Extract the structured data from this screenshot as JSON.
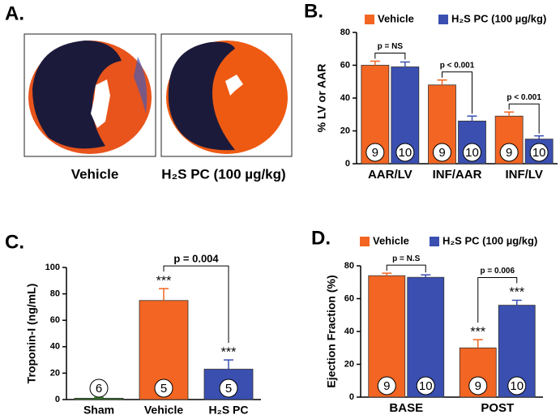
{
  "panel_a": {
    "panel_label": "A.",
    "captions": [
      "Vehicle",
      "H₂S PC (100 µg/kg)"
    ]
  },
  "chart_data": [
    {
      "type": "bar",
      "panel_label": "B.",
      "y_label": "% LV or AAR",
      "categories": [
        "AAR/LV",
        "INF/AAR",
        "INF/LV"
      ],
      "series": [
        {
          "name": "Vehicle",
          "color": "#f26522",
          "values": [
            60,
            48,
            29
          ],
          "errors": [
            2.5,
            3,
            2.5
          ],
          "n": [
            9,
            9,
            9
          ]
        },
        {
          "name": "H₂S PC (100 µg/kg)",
          "color": "#3a4fb0",
          "values": [
            59,
            26,
            15
          ],
          "errors": [
            3,
            3,
            2
          ],
          "n": [
            10,
            10,
            10
          ]
        }
      ],
      "comparisons": [
        "p = NS",
        "p < 0.001",
        "p < 0.001"
      ],
      "ylim": [
        0,
        80
      ],
      "yticks": [
        0,
        20,
        40,
        60,
        80
      ],
      "legend": "top"
    },
    {
      "type": "bar",
      "panel_label": "C.",
      "y_label": "Troponin-I (ng/mL)",
      "categories": [
        "Sham",
        "Vehicle",
        "H₂S PC"
      ],
      "values": [
        1,
        75,
        23
      ],
      "errors": [
        0.5,
        9,
        7
      ],
      "n": [
        6,
        5,
        5
      ],
      "colors": [
        "#3a8a2a",
        "#f26522",
        "#3a4fb0"
      ],
      "value_notes": [
        null,
        "***",
        "***"
      ],
      "comparison": "p = 0.004",
      "ylim": [
        0,
        100
      ],
      "yticks": [
        0,
        20,
        40,
        60,
        80,
        100
      ]
    },
    {
      "type": "bar",
      "panel_label": "D.",
      "y_label": "Ejection Fraction (%)",
      "categories": [
        "BASE",
        "POST"
      ],
      "series": [
        {
          "name": "Vehicle",
          "color": "#f26522",
          "values": [
            74,
            30
          ],
          "errors": [
            1.5,
            5
          ],
          "n": [
            9,
            9
          ],
          "value_notes": [
            null,
            "***"
          ]
        },
        {
          "name": "H₂S PC (100 µg/kg)",
          "color": "#3a4fb0",
          "values": [
            73,
            56
          ],
          "errors": [
            1.5,
            3
          ],
          "n": [
            10,
            10
          ],
          "value_notes": [
            null,
            "***"
          ]
        }
      ],
      "comparisons": [
        "p = N.S",
        "p = 0.006"
      ],
      "ylim": [
        0,
        80
      ],
      "yticks": [
        0,
        20,
        40,
        60,
        80
      ],
      "legend": "top"
    }
  ]
}
